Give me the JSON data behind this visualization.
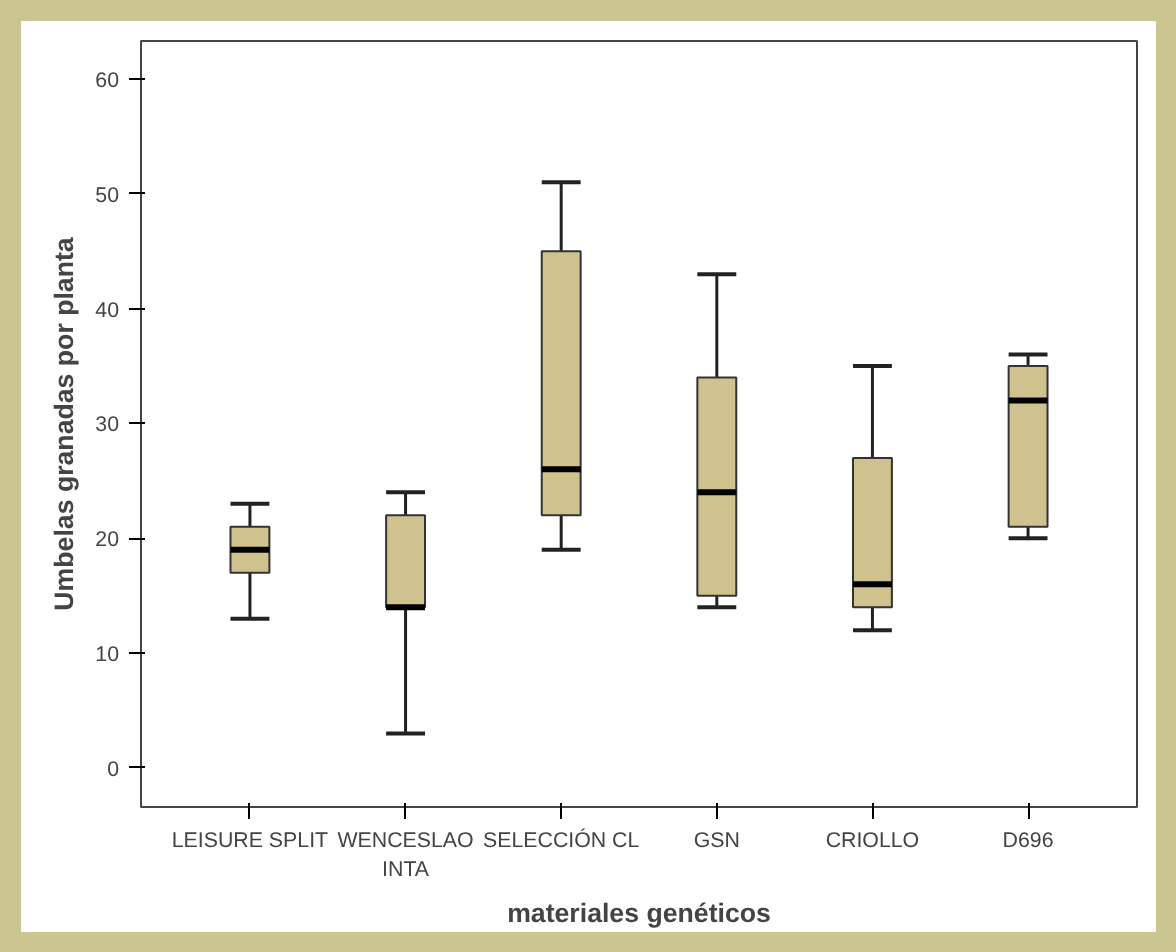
{
  "chart_data": {
    "type": "box",
    "xlabel": "materiales genéticos",
    "ylabel": "Umbelas granadas por planta",
    "categories": [
      "LEISURE SPLIT",
      "WENCESLAO\nINTA",
      "SELECCIÓN CL",
      "GSN",
      "CRIOLLO",
      "D696"
    ],
    "color": "#cfc28f",
    "boxes": [
      {
        "low": 13,
        "q1": 17,
        "median": 19,
        "q3": 21,
        "high": 23
      },
      {
        "low": 3,
        "q1": 14,
        "median": 14,
        "q3": 22,
        "high": 24
      },
      {
        "low": 19,
        "q1": 22,
        "median": 26,
        "q3": 45,
        "high": 51
      },
      {
        "low": 14,
        "q1": 15,
        "median": 24,
        "q3": 34,
        "high": 43
      },
      {
        "low": 12,
        "q1": 14,
        "median": 16,
        "q3": 27,
        "high": 35
      },
      {
        "low": 20,
        "q1": 21,
        "median": 32,
        "q3": 35,
        "high": 36
      }
    ],
    "ylim": [
      -3.4,
      63.3
    ],
    "yticks": [
      0,
      10,
      20,
      30,
      40,
      50,
      60
    ],
    "grid": false
  }
}
